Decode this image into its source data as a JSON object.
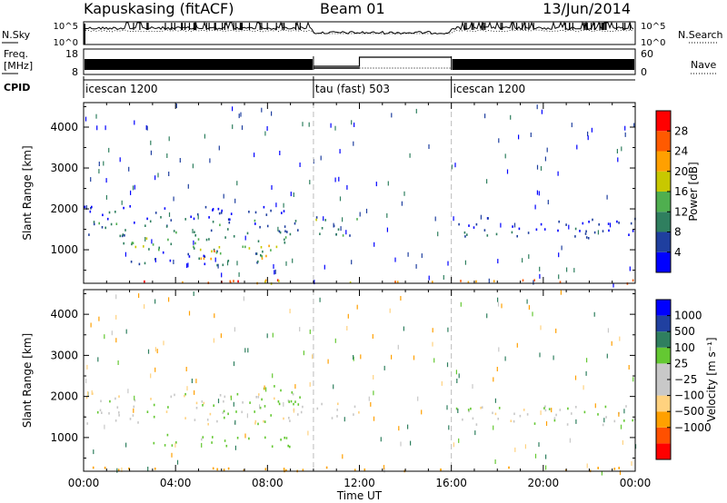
{
  "header": {
    "station": "Kapuskasing (fitACF)",
    "beam": "Beam 01",
    "date": "13/Jun/2014"
  },
  "nsky_panel": {
    "left_label": "N.Sky",
    "left_ticks": [
      "10^5",
      "10^0"
    ],
    "right_ticks": [
      "10^5",
      "10^0"
    ],
    "right_label": "N.Search"
  },
  "freq_panel": {
    "left_label": "Freq.",
    "left_unit": "[MHz]",
    "left_ticks": [
      "18",
      "8"
    ],
    "right_ticks": [
      "60",
      "0"
    ],
    "right_label": "Nave"
  },
  "cpid": {
    "label": "CPID",
    "segments": [
      {
        "name": "icescan 1200",
        "start_hour": 0,
        "end_hour": 10
      },
      {
        "name": "tau (fast) 503",
        "start_hour": 10,
        "end_hour": 16
      },
      {
        "name": "icescan 1200",
        "start_hour": 16,
        "end_hour": 24
      }
    ]
  },
  "axis": {
    "xlabel": "Time UT",
    "x_ticks": [
      "00:00",
      "04:00",
      "08:00",
      "12:00",
      "16:00",
      "20:00",
      "00:00"
    ],
    "ylabel": "Slant Range [km]",
    "y_ticks": [
      "4000",
      "3000",
      "2000",
      "1000"
    ]
  },
  "colors": {
    "power": [
      "#0000ff",
      "#1f3f9f",
      "#2f7f5f",
      "#4faf4f",
      "#c8c800",
      "#ffa000",
      "#ff5a00",
      "#ff0000"
    ],
    "velocity": [
      "#ff0000",
      "#ff5000",
      "#ffa000",
      "#ffd27f",
      "#c8c8c8",
      "#c8c8c8",
      "#64c832",
      "#2f7f5f",
      "#2040a0",
      "#0000ff"
    ]
  },
  "colorbars": {
    "power": {
      "label": "Power [dB]",
      "ticks": [
        "28",
        "24",
        "20",
        "16",
        "12",
        "8",
        "4"
      ]
    },
    "velocity": {
      "label": "Velocity [m s⁻¹]",
      "ticks": [
        "1000",
        "500",
        "100",
        "25",
        "−25",
        "−100",
        "−500",
        "−1000"
      ]
    }
  },
  "chart_data": [
    {
      "type": "heatmap",
      "title": "Power",
      "xlabel": "Time UT",
      "ylabel": "Slant Range [km]",
      "xlim": [
        0,
        24
      ],
      "ylim": [
        180,
        4600
      ],
      "colorbar": {
        "label": "Power [dB]",
        "range": [
          0,
          32
        ]
      },
      "echo_regions": [
        {
          "t": [
            0,
            9.5
          ],
          "range": [
            1350,
            1750
          ],
          "value": 8
        },
        {
          "t": [
            0,
            9.5
          ],
          "range": [
            1750,
            2100
          ],
          "value": 4
        },
        {
          "t": [
            1.5,
            9
          ],
          "range": [
            1000,
            1350
          ],
          "value": 12
        },
        {
          "t": [
            2,
            8
          ],
          "range": [
            650,
            1000
          ],
          "value": 8
        },
        {
          "t": [
            5,
            8.5
          ],
          "range": [
            800,
            1150
          ],
          "value": 20
        },
        {
          "t": [
            10,
            12
          ],
          "range": [
            1300,
            1850
          ],
          "value": 12
        },
        {
          "t": [
            16,
            24
          ],
          "range": [
            1300,
            1800
          ],
          "value": 4
        },
        {
          "t": [
            0,
            24
          ],
          "range": [
            200,
            300
          ],
          "value": 24
        }
      ]
    },
    {
      "type": "heatmap",
      "title": "Velocity",
      "xlabel": "Time UT",
      "ylabel": "Slant Range [km]",
      "xlim": [
        0,
        24
      ],
      "ylim": [
        180,
        4600
      ],
      "colorbar": {
        "label": "Velocity [m s⁻¹]",
        "range": [
          -1000,
          1000
        ]
      },
      "echo_regions": [
        {
          "t": [
            0,
            9.5
          ],
          "range": [
            1350,
            1750
          ],
          "value": 0
        },
        {
          "t": [
            0,
            9.5
          ],
          "range": [
            1750,
            2100
          ],
          "value": 0
        },
        {
          "t": [
            3,
            9
          ],
          "range": [
            800,
            1100
          ],
          "value": 60
        },
        {
          "t": [
            7.5,
            9.5
          ],
          "range": [
            1700,
            2300
          ],
          "value": 60
        },
        {
          "t": [
            10,
            12
          ],
          "range": [
            1450,
            1850
          ],
          "value": 0
        },
        {
          "t": [
            16,
            24
          ],
          "range": [
            1300,
            1800
          ],
          "value": 0
        },
        {
          "t": [
            0,
            24
          ],
          "range": [
            200,
            300
          ],
          "value": -200
        }
      ]
    }
  ]
}
